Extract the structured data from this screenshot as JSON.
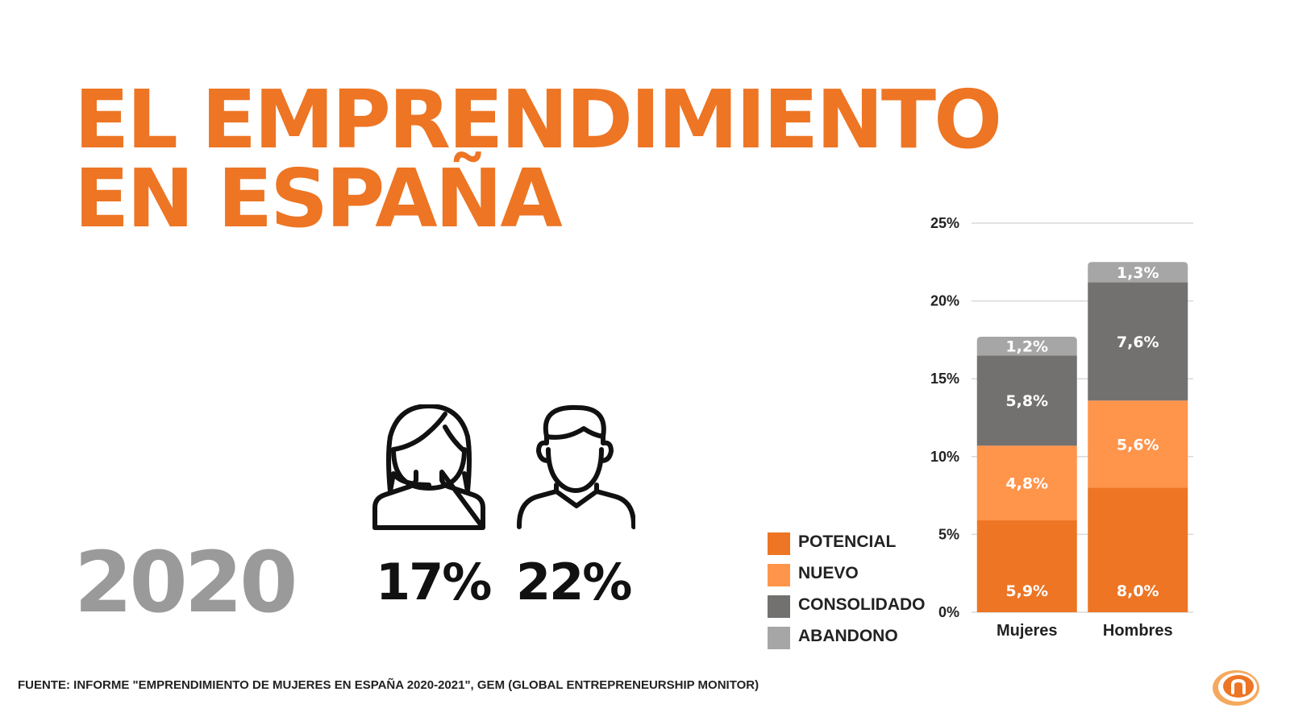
{
  "title": {
    "line1": "EL EMPRENDIMIENTO",
    "line2": "EN ESPAÑA"
  },
  "year": "2020",
  "women": {
    "icon": "woman-icon",
    "percent": "17%"
  },
  "men": {
    "icon": "man-icon",
    "percent": "22%"
  },
  "source": "FUENTE: INFORME \"EMPRENDIMIENTO DE MUJERES EN ESPAÑA 2020-2021\", GEM (GLOBAL ENTREPRENEURSHIP MONITOR)",
  "logo": {
    "icon": "brand-logo-icon"
  },
  "colors": {
    "accent": "#ed7524",
    "year_gray": "#9a9a9a",
    "potencial": "#ed7524",
    "nuevo": "#ff944b",
    "consolidado": "#737170",
    "abandono": "#a6a6a6"
  },
  "chart_data": {
    "type": "bar",
    "stacked": true,
    "categories": [
      "Mujeres",
      "Hombres"
    ],
    "series": [
      {
        "name": "POTENCIAL",
        "values": [
          5.9,
          8.0
        ],
        "labels": [
          "5,9%",
          "8,0%"
        ],
        "color": "#ed7524"
      },
      {
        "name": "NUEVO",
        "values": [
          4.8,
          5.6
        ],
        "labels": [
          "4,8%",
          "5,6%"
        ],
        "color": "#ff944b"
      },
      {
        "name": "CONSOLIDADO",
        "values": [
          5.8,
          7.6
        ],
        "labels": [
          "5,8%",
          "7,6%"
        ],
        "color": "#737170"
      },
      {
        "name": "ABANDONO",
        "values": [
          1.2,
          1.3
        ],
        "labels": [
          "1,2%",
          "1,3%"
        ],
        "color": "#a6a6a6"
      }
    ],
    "ylim": [
      0,
      25
    ],
    "yticks": [
      0,
      5,
      10,
      15,
      20,
      25
    ],
    "ytick_labels": [
      "0%",
      "5%",
      "10%",
      "15%",
      "20%",
      "25%"
    ],
    "grid": true,
    "legend": "left"
  }
}
